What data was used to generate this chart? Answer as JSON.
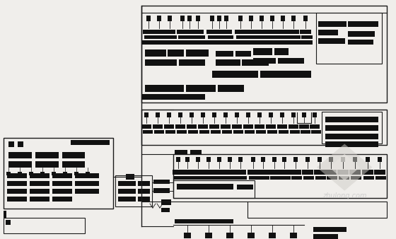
{
  "bg": "#f0eeeb",
  "lc": "#1a1a1a",
  "wm_text": "zhulong.com",
  "wm_color": "#c8c8c8"
}
